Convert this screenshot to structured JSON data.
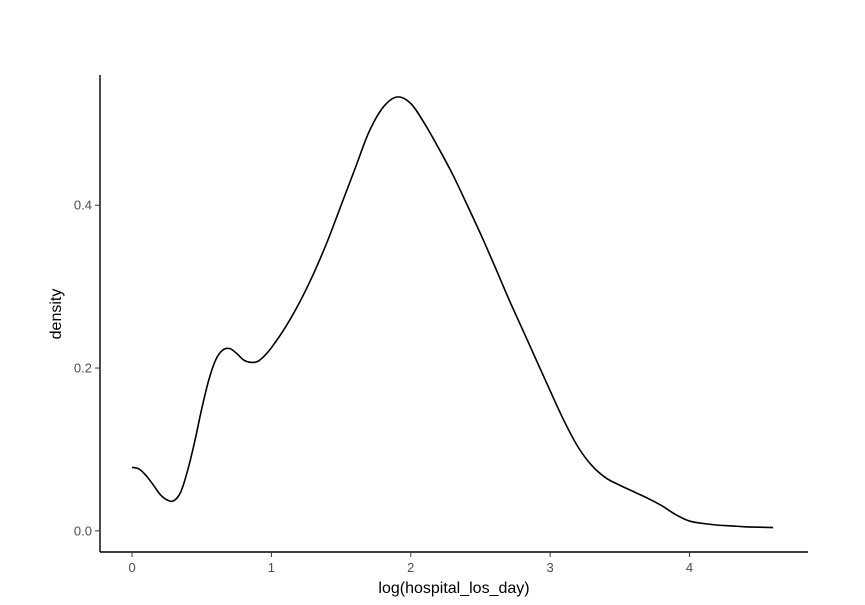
{
  "chart_data": {
    "type": "line",
    "xlabel": "log(hospital_los_day)",
    "ylabel": "density",
    "xlim": [
      -0.23,
      4.85
    ],
    "ylim": [
      -0.026,
      0.56
    ],
    "x_ticks": [
      0,
      1,
      2,
      3,
      4
    ],
    "x_tick_labels": [
      "0",
      "1",
      "2",
      "3",
      "4"
    ],
    "y_ticks": [
      0.0,
      0.2,
      0.4
    ],
    "y_tick_labels": [
      "0.0",
      "0.2",
      "0.4"
    ],
    "grid": false,
    "line_color": "#000000",
    "series": [
      {
        "x": [
          0.0,
          0.05,
          0.1,
          0.15,
          0.2,
          0.25,
          0.3,
          0.35,
          0.4,
          0.45,
          0.5,
          0.55,
          0.6,
          0.65,
          0.7,
          0.75,
          0.8,
          0.85,
          0.9,
          0.95,
          1.0,
          1.1,
          1.2,
          1.3,
          1.4,
          1.5,
          1.6,
          1.7,
          1.8,
          1.9,
          2.0,
          2.1,
          2.2,
          2.3,
          2.4,
          2.5,
          2.6,
          2.7,
          2.8,
          2.9,
          3.0,
          3.1,
          3.2,
          3.3,
          3.4,
          3.5,
          3.6,
          3.7,
          3.8,
          3.9,
          4.0,
          4.1,
          4.2,
          4.3,
          4.4,
          4.5,
          4.6
        ],
        "y": [
          0.078,
          0.076,
          0.068,
          0.057,
          0.045,
          0.038,
          0.037,
          0.048,
          0.075,
          0.11,
          0.15,
          0.185,
          0.21,
          0.222,
          0.224,
          0.218,
          0.21,
          0.207,
          0.208,
          0.215,
          0.225,
          0.25,
          0.28,
          0.315,
          0.355,
          0.4,
          0.445,
          0.49,
          0.52,
          0.533,
          0.525,
          0.5,
          0.47,
          0.438,
          0.402,
          0.365,
          0.326,
          0.286,
          0.248,
          0.21,
          0.172,
          0.135,
          0.103,
          0.08,
          0.065,
          0.056,
          0.048,
          0.04,
          0.031,
          0.02,
          0.012,
          0.009,
          0.007,
          0.006,
          0.005,
          0.0045,
          0.004
        ]
      }
    ]
  }
}
